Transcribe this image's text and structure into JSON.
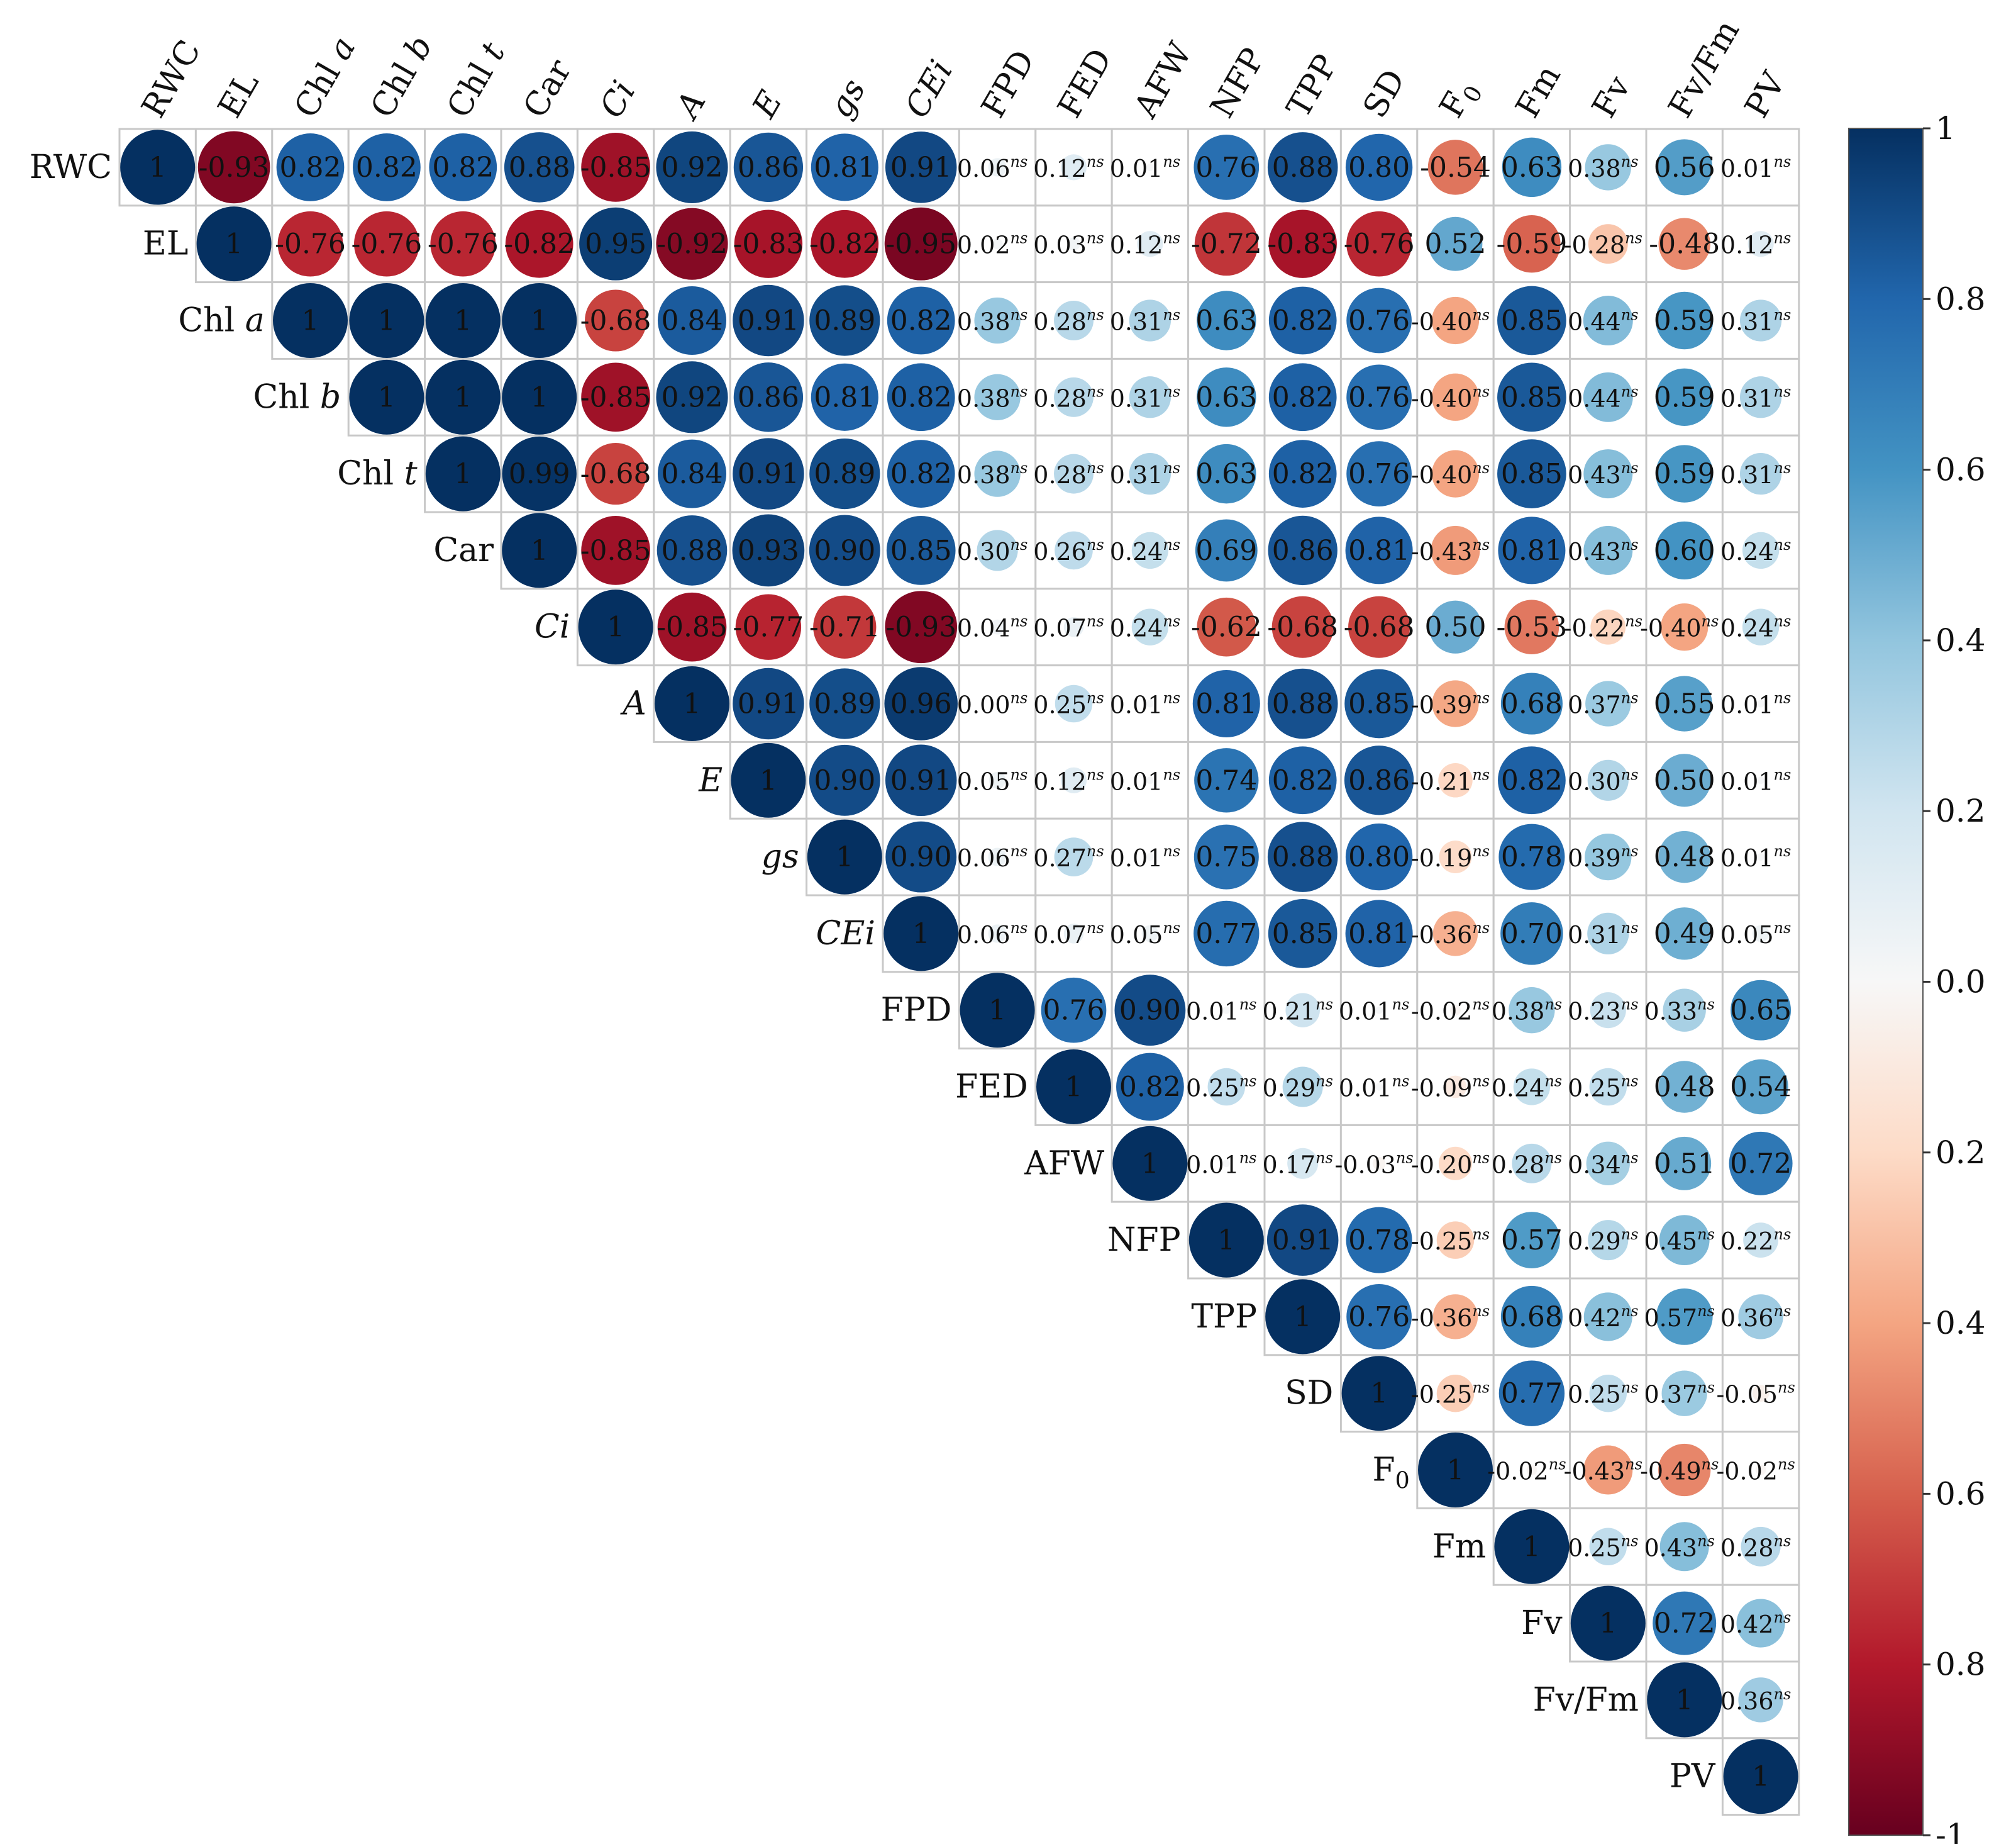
{
  "chart_data": {
    "type": "heatmap",
    "subtype": "correlation-matrix-upper-triangle-circles",
    "title": "",
    "variables": [
      {
        "label": "RWC",
        "italic": false
      },
      {
        "label": "EL",
        "italic": false
      },
      {
        "label": "Chl a",
        "base": "Chl ",
        "ital": "a",
        "italic": false
      },
      {
        "label": "Chl b",
        "base": "Chl ",
        "ital": "b",
        "italic": false
      },
      {
        "label": "Chl t",
        "base": "Chl ",
        "ital": "t",
        "italic": false
      },
      {
        "label": "Car",
        "italic": false
      },
      {
        "label": "Ci",
        "italic": true
      },
      {
        "label": "A",
        "italic": true
      },
      {
        "label": "E",
        "italic": true
      },
      {
        "label": "gs",
        "italic": true
      },
      {
        "label": "CEi",
        "italic": true
      },
      {
        "label": "FPD",
        "italic": false
      },
      {
        "label": "FED",
        "italic": false
      },
      {
        "label": "AFW",
        "italic": false
      },
      {
        "label": "NFP",
        "italic": false
      },
      {
        "label": "TPP",
        "italic": false
      },
      {
        "label": "SD",
        "italic": false
      },
      {
        "label": "F0",
        "base": "F",
        "sub": "0",
        "italic": false
      },
      {
        "label": "Fm",
        "italic": false
      },
      {
        "label": "Fv",
        "italic": false
      },
      {
        "label": "Fv/Fm",
        "italic": false
      },
      {
        "label": "PV",
        "italic": false
      }
    ],
    "values": [
      [
        "1",
        "-0.93",
        "0.82",
        "0.82",
        "0.82",
        "0.88",
        "-0.85",
        "0.92",
        "0.86",
        "0.81",
        "0.91",
        "0.06ns",
        "0.12ns",
        "0.01ns",
        "0.76",
        "0.88",
        "0.80",
        "-0.54",
        "0.63",
        "0.38ns",
        "0.56",
        "0.01ns"
      ],
      [
        "1",
        "-0.76",
        "-0.76",
        "-0.76",
        "-0.82",
        "0.95",
        "-0.92",
        "-0.83",
        "-0.82",
        "-0.95",
        "0.02ns",
        "0.03ns",
        "0.12ns",
        "-0.72",
        "-0.83",
        "-0.76",
        "0.52",
        "-0.59",
        "-0.28ns",
        "-0.48",
        "0.12ns"
      ],
      [
        "1",
        "1",
        "1",
        "1",
        "-0.68",
        "0.84",
        "0.91",
        "0.89",
        "0.82",
        "0.38ns",
        "0.28ns",
        "0.31ns",
        "0.63",
        "0.82",
        "0.76",
        "-0.40ns",
        "0.85",
        "0.44ns",
        "0.59",
        "0.31ns"
      ],
      [
        "1",
        "1",
        "1",
        "-0.85",
        "0.92",
        "0.86",
        "0.81",
        "0.82",
        "0.38ns",
        "0.28ns",
        "0.31ns",
        "0.63",
        "0.82",
        "0.76",
        "-0.40ns",
        "0.85",
        "0.44ns",
        "0.59",
        "0.31ns"
      ],
      [
        "1",
        "0.99",
        "-0.68",
        "0.84",
        "0.91",
        "0.89",
        "0.82",
        "0.38ns",
        "0.28ns",
        "0.31ns",
        "0.63",
        "0.82",
        "0.76",
        "-0.40ns",
        "0.85",
        "0.43ns",
        "0.59",
        "0.31ns"
      ],
      [
        "1",
        "-0.85",
        "0.88",
        "0.93",
        "0.90",
        "0.85",
        "0.30ns",
        "0.26ns",
        "0.24ns",
        "0.69",
        "0.86",
        "0.81",
        "-0.43ns",
        "0.81",
        "0.43ns",
        "0.60",
        "0.24ns"
      ],
      [
        "1",
        "-0.85",
        "-0.77",
        "-0.71",
        "-0.93",
        "0.04ns",
        "0.07ns",
        "0.24ns",
        "-0.62",
        "-0.68",
        "-0.68",
        "0.50",
        "-0.53",
        "-0.22ns",
        "-0.40ns",
        "0.24ns"
      ],
      [
        "1",
        "0.91",
        "0.89",
        "0.96",
        "0.00ns",
        "0.25ns",
        "0.01ns",
        "0.81",
        "0.88",
        "0.85",
        "-0.39ns",
        "0.68",
        "0.37ns",
        "0.55",
        "0.01ns"
      ],
      [
        "1",
        "0.90",
        "0.91",
        "0.05ns",
        "0.12ns",
        "0.01ns",
        "0.74",
        "0.82",
        "0.86",
        "-0.21ns",
        "0.82",
        "0.30ns",
        "0.50",
        "0.01ns"
      ],
      [
        "1",
        "0.90",
        "0.06ns",
        "0.27ns",
        "0.01ns",
        "0.75",
        "0.88",
        "0.80",
        "-0.19ns",
        "0.78",
        "0.39ns",
        "0.48",
        "0.01ns"
      ],
      [
        "1",
        "0.06ns",
        "0.07ns",
        "0.05ns",
        "0.77",
        "0.85",
        "0.81",
        "-0.36ns",
        "0.70",
        "0.31ns",
        "0.49",
        "0.05ns"
      ],
      [
        "1",
        "0.76",
        "0.90",
        "0.01ns",
        "0.21ns",
        "0.01ns",
        "-0.02ns",
        "0.38ns",
        "0.23ns",
        "0.33ns",
        "0.65"
      ],
      [
        "1",
        "0.82",
        "0.25ns",
        "0.29ns",
        "0.01ns",
        "-0.09ns",
        "0.24ns",
        "0.25ns",
        "0.48",
        "0.54"
      ],
      [
        "1",
        "0.01ns",
        "0.17ns",
        "-0.03ns",
        "-0.20ns",
        "0.28ns",
        "0.34ns",
        "0.51",
        "0.72"
      ],
      [
        "1",
        "0.91",
        "0.78",
        "-0.25ns",
        "0.57",
        "0.29ns",
        "0.45ns",
        "0.22ns"
      ],
      [
        "1",
        "0.76",
        "-0.36ns",
        "0.68",
        "0.42ns",
        "0.57ns",
        "0.36ns"
      ],
      [
        "1",
        "-0.25ns",
        "0.77",
        "0.25ns",
        "0.37ns",
        "-0.05ns"
      ],
      [
        "1",
        "-0.02ns",
        "-0.43ns",
        "-0.49ns",
        "-0.02ns"
      ],
      [
        "1",
        "0.25ns",
        "0.43ns",
        "0.28ns"
      ],
      [
        "1",
        "0.72",
        "0.42ns"
      ],
      [
        "1",
        "0.36ns"
      ],
      [
        "1"
      ]
    ],
    "significance_marker": "ns",
    "colorbar": {
      "min": -1,
      "max": 1,
      "ticks": [
        "1",
        "0.8",
        "0.6",
        "0.4",
        "0.2",
        "0.0",
        "0.2",
        "0.4",
        "0.6",
        "0.8",
        "-1"
      ],
      "stops": [
        "#053061",
        "#2166ac",
        "#4393c3",
        "#92c5de",
        "#d1e5f0",
        "#f7f7f7",
        "#fddbc7",
        "#f4a582",
        "#d6604d",
        "#b2182b",
        "#67001f"
      ]
    },
    "legend_position": "right"
  }
}
